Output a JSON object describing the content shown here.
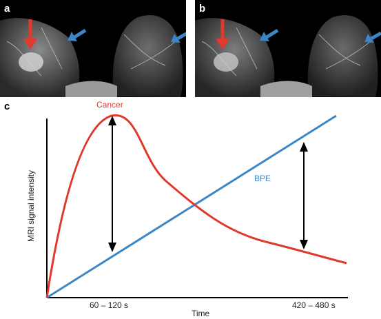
{
  "panels": {
    "a": {
      "label": "a"
    },
    "b": {
      "label": "b"
    },
    "c": {
      "label": "c"
    }
  },
  "arrow_colors": {
    "red": "#e03a2e",
    "blue": "#3b86c6"
  },
  "chart_data": {
    "type": "line",
    "xlabel": "Time",
    "ylabel": "MRI signal intensity",
    "x_ticks": [
      "60 – 120 s",
      "420 – 480 s"
    ],
    "series": [
      {
        "name": "Cancer",
        "color": "#e0392b",
        "shape": "rapid rise to an early peak, then washout decline"
      },
      {
        "name": "BPE",
        "color": "#3b86c6",
        "shape": "steady linear increase"
      }
    ],
    "annotations": [
      "double-headed arrow at 60 – 120 s: Cancer above BPE",
      "double-headed arrow at 420 – 480 s: BPE above Cancer"
    ],
    "grid": false
  }
}
